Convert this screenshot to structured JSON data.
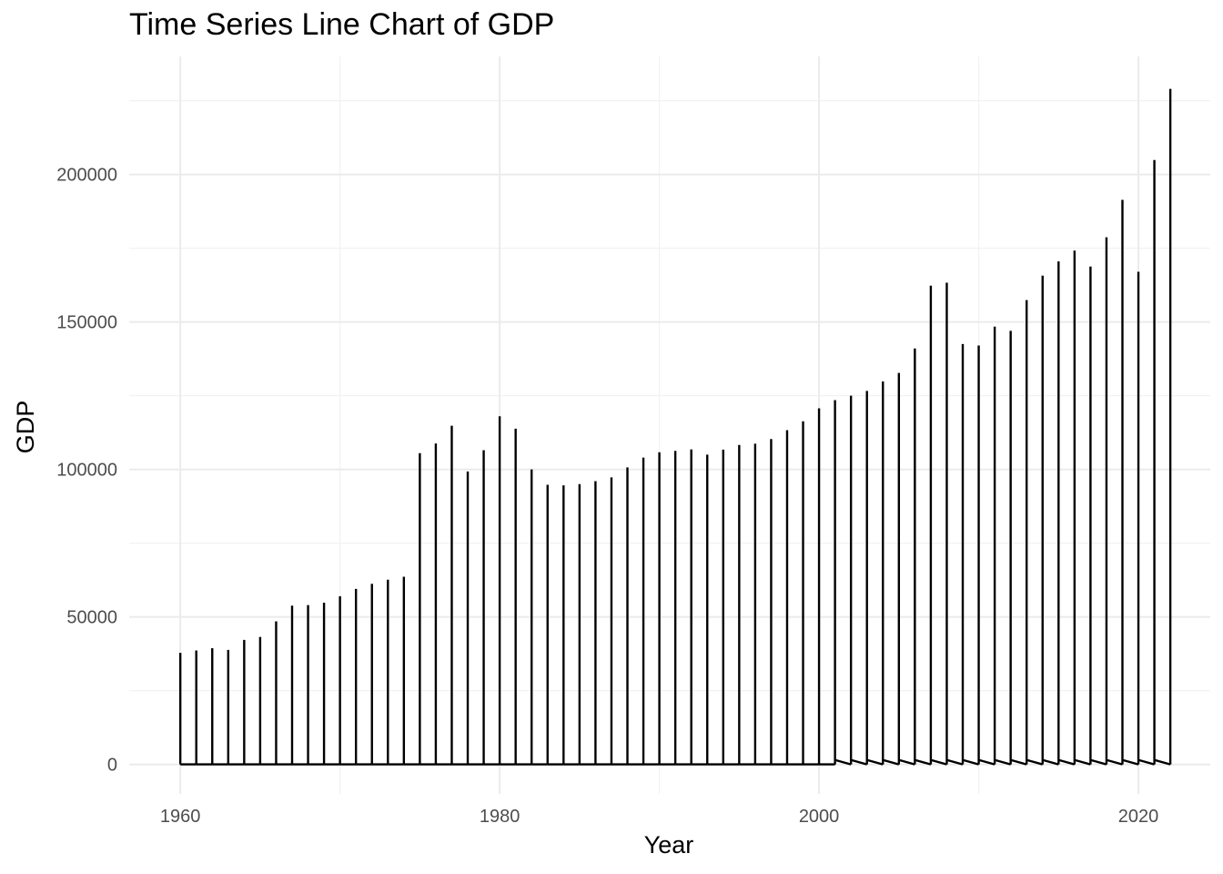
{
  "chart_data": {
    "type": "line",
    "title": "Time Series Line Chart of GDP",
    "xlabel": "Year",
    "ylabel": "GDP",
    "xlim": [
      1956.8,
      2024.5
    ],
    "ylim": [
      -10000,
      240000
    ],
    "x_ticks": [
      1960,
      1980,
      2000,
      2020
    ],
    "y_ticks": [
      0,
      50000,
      100000,
      150000,
      200000
    ],
    "x_tick_labels": [
      "1960",
      "1980",
      "2000",
      "2020"
    ],
    "y_tick_labels": [
      "0",
      "50000",
      "100000",
      "150000",
      "200000"
    ],
    "grid": true,
    "legend": "none",
    "line_color": "#000000",
    "series": [
      {
        "x": [
          1960,
          1961,
          1962,
          1963,
          1964,
          1965,
          1966,
          1967,
          1968,
          1969,
          1970,
          1971,
          1972,
          1973,
          1974,
          1975,
          1976,
          1977,
          1978,
          1979,
          1980,
          1981,
          1982,
          1983,
          1984,
          1985,
          1986,
          1987,
          1988,
          1989,
          1990,
          1991,
          1992,
          1993,
          1994,
          1995,
          1996,
          1997,
          1998,
          1999,
          2000,
          2001,
          2002,
          2003,
          2004,
          2005,
          2006,
          2007,
          2008,
          2009,
          2010,
          2011,
          2012,
          2013,
          2014,
          2015,
          2016,
          2017,
          2018,
          2019,
          2020,
          2021,
          2022
        ],
        "y": [
          37800,
          38600,
          39400,
          38800,
          42200,
          43200,
          48500,
          53800,
          54000,
          54800,
          57000,
          59500,
          61200,
          62600,
          63600,
          105500,
          108800,
          114800,
          99300,
          106500,
          118000,
          113800,
          100000,
          94800,
          94600,
          95000,
          96000,
          97300,
          100700,
          104000,
          105800,
          106300,
          106800,
          105000,
          106700,
          108300,
          108700,
          110300,
          113300,
          116300,
          120700,
          123500,
          125000,
          126600,
          129800,
          132700,
          141000,
          162300,
          163300,
          142500,
          142000,
          148400,
          147000,
          157400,
          165700,
          170500,
          174200,
          168800,
          178700,
          191400,
          167000,
          204900,
          229000
        ]
      }
    ]
  }
}
